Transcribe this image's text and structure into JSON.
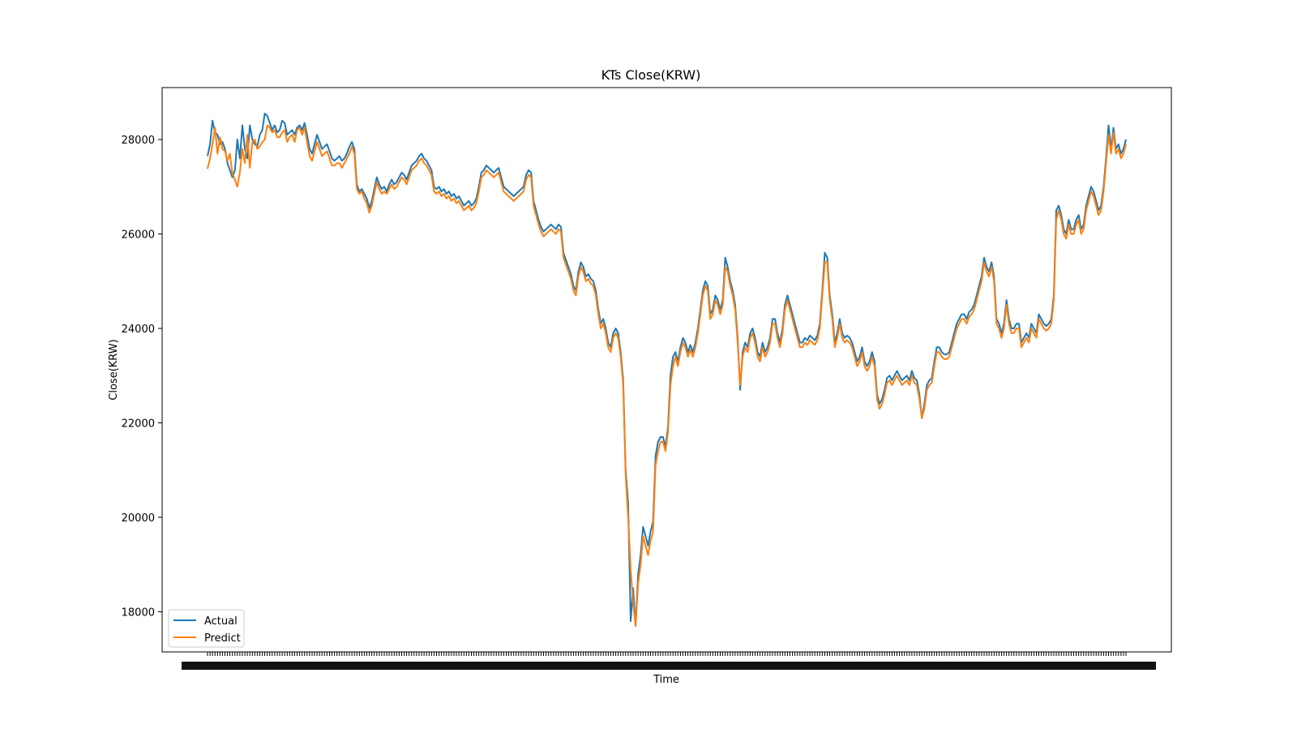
{
  "chart_data": {
    "type": "line",
    "title": "KTs Close(KRW)",
    "xlabel": "Time",
    "ylabel": "Close(KRW)",
    "ylim": [
      17150,
      29100
    ],
    "yticks": [
      18000,
      20000,
      22000,
      24000,
      26000,
      28000
    ],
    "grid": false,
    "legend": "lower left",
    "series": [
      {
        "name": "Actual",
        "color": "#1f77b4",
        "values": [
          27650,
          27900,
          28400,
          28150,
          28100,
          27900,
          27950,
          27800,
          27500,
          27350,
          27200,
          27350,
          28000,
          27600,
          28300,
          27800,
          27600,
          28300,
          28000,
          27900,
          27850,
          28100,
          28200,
          28550,
          28500,
          28350,
          28200,
          28300,
          28150,
          28200,
          28400,
          28350,
          28100,
          28150,
          28200,
          28100,
          28250,
          28300,
          28200,
          28350,
          28100,
          27800,
          27700,
          27900,
          28100,
          27950,
          27800,
          27850,
          27900,
          27750,
          27600,
          27550,
          27600,
          27650,
          27550,
          27600,
          27700,
          27850,
          27950,
          27800,
          27050,
          26900,
          26950,
          26850,
          26750,
          26550,
          26700,
          26950,
          27200,
          27050,
          26950,
          27000,
          26900,
          27050,
          27150,
          27050,
          27100,
          27200,
          27300,
          27250,
          27150,
          27300,
          27450,
          27500,
          27550,
          27650,
          27700,
          27600,
          27550,
          27450,
          27350,
          27000,
          26950,
          27000,
          26900,
          26950,
          26850,
          26900,
          26800,
          26850,
          26750,
          26800,
          26700,
          26600,
          26650,
          26700,
          26600,
          26650,
          26750,
          27000,
          27300,
          27350,
          27450,
          27400,
          27350,
          27300,
          27350,
          27400,
          27200,
          27000,
          26950,
          26900,
          26850,
          26800,
          26850,
          26900,
          26950,
          27000,
          27250,
          27350,
          27300,
          26700,
          26500,
          26300,
          26150,
          26050,
          26100,
          26150,
          26200,
          26150,
          26100,
          26200,
          26150,
          25600,
          25450,
          25300,
          25150,
          24900,
          24800,
          25200,
          25400,
          25300,
          25100,
          25150,
          25050,
          25000,
          24800,
          24400,
          24100,
          24200,
          24000,
          23700,
          23600,
          23900,
          24000,
          23900,
          23500,
          22900,
          21000,
          20300,
          17800,
          18500,
          17700,
          18800,
          19200,
          19800,
          19600,
          19400,
          19700,
          19900,
          21300,
          21600,
          21700,
          21700,
          21500,
          21900,
          23000,
          23400,
          23500,
          23300,
          23600,
          23800,
          23700,
          23500,
          23650,
          23500,
          23700,
          24000,
          24400,
          24800,
          25000,
          24900,
          24300,
          24400,
          24700,
          24600,
          24400,
          24600,
          25500,
          25300,
          25000,
          24800,
          24500,
          23800,
          22700,
          23500,
          23700,
          23600,
          23900,
          24000,
          23800,
          23500,
          23400,
          23700,
          23500,
          23600,
          23800,
          24200,
          24200,
          23900,
          23700,
          24000,
          24500,
          24700,
          24500,
          24300,
          24100,
          23900,
          23700,
          23700,
          23800,
          23750,
          23850,
          23800,
          23750,
          23850,
          24100,
          24800,
          25600,
          25500,
          24700,
          24300,
          23700,
          23900,
          24200,
          23900,
          23800,
          23850,
          23800,
          23700,
          23500,
          23300,
          23400,
          23600,
          23300,
          23200,
          23300,
          23500,
          23300,
          22600,
          22400,
          22500,
          22700,
          22950,
          23000,
          22900,
          23000,
          23100,
          23000,
          22900,
          22950,
          23000,
          22900,
          23100,
          22950,
          22900,
          22600,
          22100,
          22400,
          22800,
          22900,
          22950,
          23300,
          23600,
          23600,
          23500,
          23450,
          23450,
          23500,
          23700,
          23900,
          24100,
          24200,
          24300,
          24300,
          24200,
          24350,
          24400,
          24500,
          24700,
          24900,
          25100,
          25500,
          25300,
          25200,
          25400,
          25100,
          24200,
          24100,
          23900,
          24100,
          24600,
          24200,
          24000,
          24000,
          24100,
          24100,
          23700,
          23800,
          23900,
          23800,
          24100,
          24000,
          23900,
          24300,
          24200,
          24100,
          24050,
          24100,
          24200,
          24700,
          26500,
          26600,
          26400,
          26100,
          26000,
          26300,
          26100,
          26100,
          26300,
          26400,
          26100,
          26200,
          26600,
          26800,
          27000,
          26900,
          26700,
          26500,
          26600,
          27000,
          27600,
          28300,
          27800,
          28250,
          27800,
          27900,
          27700,
          27800,
          28000
        ]
      },
      {
        "name": "Predict",
        "color": "#ff7f0e",
        "values": [
          27380,
          27600,
          27900,
          28250,
          27700,
          28050,
          27800,
          27750,
          27550,
          27700,
          27280,
          27150,
          27000,
          27300,
          27800,
          27500,
          28100,
          27400,
          27950,
          28000,
          27800,
          27850,
          27950,
          28000,
          28300,
          28250,
          28150,
          28200,
          28050,
          28050,
          28150,
          28200,
          27950,
          28050,
          28100,
          27950,
          28200,
          28250,
          28100,
          28250,
          27950,
          27650,
          27550,
          27750,
          27950,
          27800,
          27650,
          27700,
          27750,
          27600,
          27450,
          27450,
          27500,
          27500,
          27400,
          27500,
          27600,
          27700,
          27850,
          27700,
          26950,
          26850,
          26900,
          26750,
          26650,
          26450,
          26600,
          26850,
          27100,
          26950,
          26850,
          26900,
          26850,
          26950,
          27050,
          26950,
          27000,
          27100,
          27200,
          27150,
          27050,
          27200,
          27350,
          27400,
          27450,
          27550,
          27600,
          27500,
          27450,
          27350,
          27250,
          26900,
          26850,
          26900,
          26800,
          26850,
          26750,
          26800,
          26700,
          26750,
          26650,
          26700,
          26600,
          26500,
          26550,
          26600,
          26500,
          26550,
          26650,
          26900,
          27200,
          27250,
          27350,
          27300,
          27250,
          27200,
          27250,
          27300,
          27100,
          26900,
          26850,
          26800,
          26750,
          26700,
          26750,
          26800,
          26850,
          26900,
          27150,
          27250,
          27200,
          26600,
          26400,
          26200,
          26050,
          25950,
          26000,
          26050,
          26100,
          26050,
          26000,
          26100,
          26050,
          25500,
          25350,
          25200,
          25050,
          24800,
          24700,
          25100,
          25300,
          25200,
          25000,
          25050,
          24950,
          24900,
          24700,
          24300,
          24000,
          24100,
          23900,
          23600,
          23500,
          23800,
          23900,
          23800,
          23400,
          22800,
          20900,
          20000,
          18900,
          18200,
          17700,
          18600,
          19000,
          19600,
          19400,
          19200,
          19500,
          19700,
          21100,
          21400,
          21600,
          21600,
          21400,
          21800,
          22800,
          23200,
          23400,
          23200,
          23500,
          23700,
          23600,
          23400,
          23550,
          23400,
          23600,
          23900,
          24300,
          24700,
          24900,
          24800,
          24200,
          24300,
          24600,
          24500,
          24300,
          24500,
          25300,
          25200,
          24900,
          24700,
          24400,
          23700,
          22800,
          23400,
          23600,
          23500,
          23800,
          23900,
          23700,
          23400,
          23300,
          23600,
          23400,
          23500,
          23700,
          24100,
          24100,
          23800,
          23600,
          23900,
          24400,
          24600,
          24400,
          24200,
          24000,
          23800,
          23600,
          23600,
          23700,
          23650,
          23750,
          23700,
          23650,
          23750,
          24000,
          24700,
          25400,
          25400,
          24600,
          24200,
          23600,
          23800,
          24100,
          23800,
          23700,
          23750,
          23700,
          23600,
          23400,
          23200,
          23300,
          23500,
          23200,
          23100,
          23200,
          23400,
          23200,
          22500,
          22300,
          22400,
          22600,
          22850,
          22900,
          22800,
          22900,
          23000,
          22900,
          22800,
          22850,
          22900,
          22800,
          23000,
          22850,
          22800,
          22500,
          22100,
          22300,
          22700,
          22800,
          22850,
          23200,
          23500,
          23500,
          23400,
          23350,
          23350,
          23400,
          23600,
          23800,
          24000,
          24100,
          24200,
          24200,
          24100,
          24250,
          24300,
          24400,
          24600,
          24800,
          25000,
          25400,
          25200,
          25100,
          25300,
          25000,
          24100,
          24000,
          23800,
          24000,
          24500,
          24100,
          23900,
          23900,
          24000,
          24000,
          23600,
          23700,
          23800,
          23700,
          24000,
          23900,
          23800,
          24200,
          24100,
          24000,
          23950,
          24000,
          24100,
          24600,
          26300,
          26500,
          26300,
          26000,
          25900,
          26200,
          26000,
          26000,
          26200,
          26300,
          26000,
          26100,
          26500,
          26700,
          26900,
          26800,
          26600,
          26400,
          26500,
          26900,
          27500,
          28100,
          27700,
          28150,
          27700,
          27800,
          27600,
          27700,
          27900
        ]
      }
    ]
  }
}
